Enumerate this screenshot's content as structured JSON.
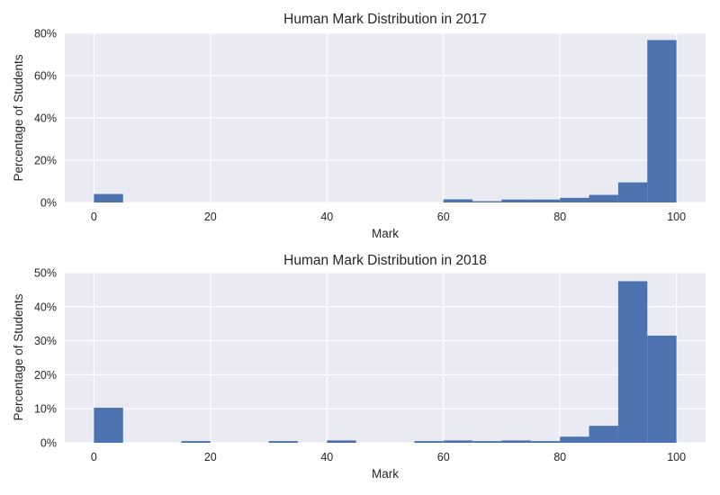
{
  "chart_data": [
    {
      "type": "bar",
      "title": "Human Mark Distribution in 2017",
      "xlabel": "Mark",
      "ylabel": "Percentage of Students",
      "xlim": [
        -5,
        105
      ],
      "ylim": [
        0,
        80
      ],
      "xticks": [
        "0",
        "20",
        "40",
        "60",
        "80",
        "100"
      ],
      "yticks": [
        "0%",
        "20%",
        "40%",
        "60%",
        "80%"
      ],
      "grid": true,
      "color": "#4c72b0",
      "bin_width": 5,
      "bins": [
        {
          "x0": 0,
          "value": 4.0
        },
        {
          "x0": 60,
          "value": 1.5
        },
        {
          "x0": 65,
          "value": 0.6
        },
        {
          "x0": 70,
          "value": 1.4
        },
        {
          "x0": 75,
          "value": 1.4
        },
        {
          "x0": 80,
          "value": 2.2
        },
        {
          "x0": 85,
          "value": 3.6
        },
        {
          "x0": 90,
          "value": 9.5
        },
        {
          "x0": 95,
          "value": 76.8
        }
      ]
    },
    {
      "type": "bar",
      "title": "Human Mark Distribution in 2018",
      "xlabel": "Mark",
      "ylabel": "Percentage of Students",
      "xlim": [
        -5,
        105
      ],
      "ylim": [
        0,
        50
      ],
      "xticks": [
        "0",
        "20",
        "40",
        "60",
        "80",
        "100"
      ],
      "yticks": [
        "0%",
        "10%",
        "20%",
        "30%",
        "40%",
        "50%"
      ],
      "grid": true,
      "color": "#4c72b0",
      "bin_width": 5,
      "bins": [
        {
          "x0": 0,
          "value": 10.3
        },
        {
          "x0": 15,
          "value": 0.5
        },
        {
          "x0": 30,
          "value": 0.5
        },
        {
          "x0": 40,
          "value": 0.7
        },
        {
          "x0": 55,
          "value": 0.5
        },
        {
          "x0": 60,
          "value": 0.7
        },
        {
          "x0": 65,
          "value": 0.5
        },
        {
          "x0": 70,
          "value": 0.7
        },
        {
          "x0": 75,
          "value": 0.5
        },
        {
          "x0": 80,
          "value": 1.8
        },
        {
          "x0": 85,
          "value": 5.0
        },
        {
          "x0": 90,
          "value": 47.5
        },
        {
          "x0": 95,
          "value": 31.5
        }
      ]
    }
  ]
}
